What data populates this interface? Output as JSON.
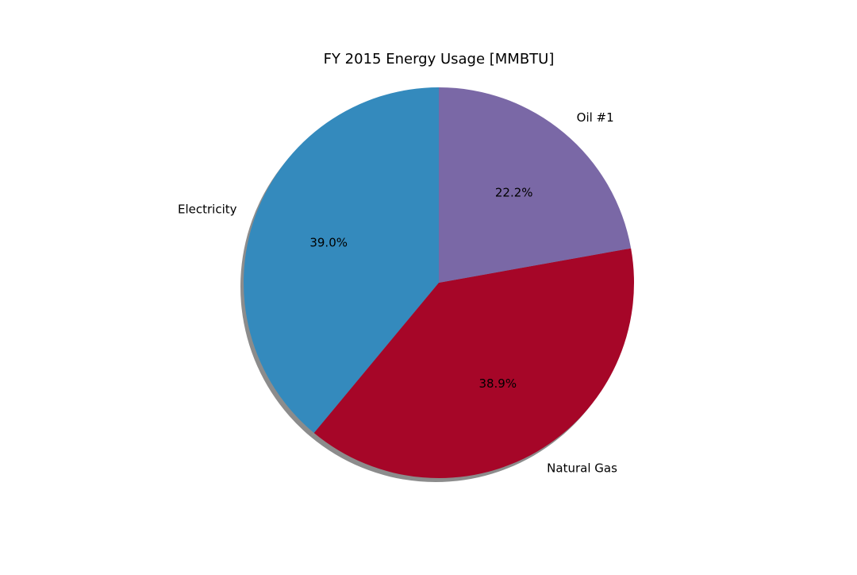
{
  "chart_data": {
    "type": "pie",
    "title": "FY 2015 Energy Usage [MMBTU]",
    "start_angle_deg": 90,
    "direction": "counterclockwise",
    "shadow": true,
    "slices": [
      {
        "label": "Electricity",
        "value": 39.0,
        "pct_label": "39.0%",
        "color": "#348ABD"
      },
      {
        "label": "Natural Gas",
        "value": 38.9,
        "pct_label": "38.9%",
        "color": "#A60628"
      },
      {
        "label": "Oil #1",
        "value": 22.2,
        "pct_label": "22.2%",
        "color": "#7A68A6"
      }
    ]
  }
}
